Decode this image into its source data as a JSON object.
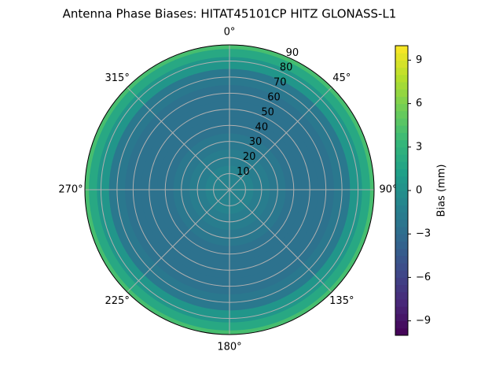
{
  "chart_data": {
    "type": "polar_contour",
    "title": "Antenna Phase Biases: HITAT45101CP    HITZ GLONASS-L1",
    "x": [
      0,
      10,
      20,
      30,
      40,
      50,
      60,
      70,
      80,
      85,
      90
    ],
    "values": [
      -1,
      -1,
      -1.5,
      -2,
      -2.5,
      -2.5,
      -2.5,
      -2,
      0.5,
      2,
      4
    ],
    "rlim": [
      0,
      90
    ],
    "rticks": [
      10,
      20,
      30,
      40,
      50,
      60,
      70,
      80,
      90
    ],
    "thetaticks": [
      {
        "value": 0,
        "label": "0°"
      },
      {
        "value": 45,
        "label": "45°"
      },
      {
        "value": 90,
        "label": "90°"
      },
      {
        "value": 135,
        "label": "135°"
      },
      {
        "value": 180,
        "label": "180°"
      },
      {
        "value": 225,
        "label": "225°"
      },
      {
        "value": 270,
        "label": "270°"
      },
      {
        "value": 315,
        "label": "315°"
      }
    ],
    "colorbar_label": "Bias (mm)",
    "clim": [
      -10,
      10
    ],
    "cticks": [
      {
        "value": -9,
        "label": "−9"
      },
      {
        "value": -6,
        "label": "−6"
      },
      {
        "value": -3,
        "label": "−3"
      },
      0,
      3,
      6,
      9
    ],
    "colormap": "viridis",
    "grid": true
  }
}
